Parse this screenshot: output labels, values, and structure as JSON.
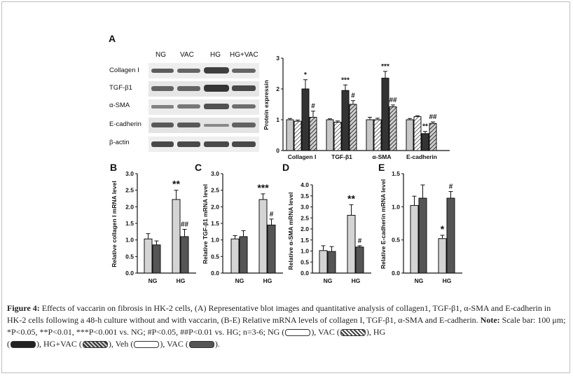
{
  "panel_letters": [
    "A",
    "B",
    "C",
    "D",
    "E"
  ],
  "blot": {
    "groups": [
      "NG",
      "VAC",
      "HG",
      "HG+VAC"
    ],
    "rows": [
      "Collagen I",
      "TGF-β1",
      "α-SMA",
      "E-cadherin",
      "β-actin"
    ]
  },
  "caption": {
    "label": "Figure 4:",
    "text": " Effects of vaccarin on fibrosis in HK-2 cells, (A) Representative blot images and quantitative analysis of collagen1, TGF-β1, α-SMA and E-cadherin in HK-2 cells following a 48-h culture without and with vaccarin, (B-E) Relative mRNA levels of collagen I, TGF-β1, α-SMA and E-cadherin. ",
    "note_label": "Note:",
    "note_text": " Scale bar: 100 μm; *P<0.05, **P<0.01, ***P<0.001 vs. NG; #P<0.05, ##P<0.01 vs. HG; n=3-6; NG (",
    "leg1": "), VAC (",
    "leg2": "), HG",
    "leg3": "(",
    "leg4": "), HG+VAC (",
    "leg5": "), Veh (",
    "leg6": "), VAC (",
    "leg7": ")."
  },
  "colors": {
    "ng": "#c8c8c8",
    "vac": "#c8c8c8",
    "hg": "#333333",
    "hgvac": "#8a8a8a",
    "light": "#d4d4d4",
    "dark": "#555555"
  },
  "chart_data": [
    {
      "type": "bar",
      "panel": "A",
      "ylabel": "Protein expressin",
      "ylim": [
        0,
        3
      ],
      "yticks": [
        0,
        1,
        2,
        3
      ],
      "categories": [
        "Collagen I",
        "TGF-β1",
        "α-SMA",
        "E-cadherin"
      ],
      "series": [
        {
          "values": [
            1.0,
            1.0,
            1.0,
            1.0
          ],
          "errors": [
            0.04,
            0.03,
            0.08,
            0.04
          ],
          "fill": "plain",
          "color": "#c8c8c8"
        },
        {
          "values": [
            0.95,
            0.92,
            1.0,
            1.1
          ],
          "errors": [
            0.04,
            0.04,
            0.05,
            0.03
          ],
          "fill": "hatch",
          "color": "#c8c8c8"
        },
        {
          "values": [
            2.0,
            1.95,
            2.35,
            0.55
          ],
          "errors": [
            0.3,
            0.18,
            0.22,
            0.07
          ],
          "fill": "plain",
          "color": "#333333"
        },
        {
          "values": [
            1.08,
            1.5,
            1.42,
            0.88
          ],
          "errors": [
            0.2,
            0.12,
            0.06,
            0.05
          ],
          "fill": "hatch",
          "color": "#8a8a8a"
        }
      ],
      "annotations": [
        {
          "cat": 0,
          "series": 2,
          "text": "*"
        },
        {
          "cat": 0,
          "series": 3,
          "text": "#"
        },
        {
          "cat": 1,
          "series": 2,
          "text": "***"
        },
        {
          "cat": 1,
          "series": 3,
          "text": "#"
        },
        {
          "cat": 2,
          "series": 2,
          "text": "***"
        },
        {
          "cat": 2,
          "series": 3,
          "text": "##"
        },
        {
          "cat": 3,
          "series": 2,
          "text": "**"
        },
        {
          "cat": 3,
          "series": 3,
          "text": "##"
        }
      ]
    },
    {
      "type": "bar",
      "panel": "B",
      "ylabel": "Relative collagen I mRNA level",
      "ylim": [
        0,
        3
      ],
      "yticks": [
        "0.0",
        "0.5",
        "1.0",
        "1.5",
        "2.0",
        "2.5",
        "3.0"
      ],
      "categories": [
        "NG",
        "HG"
      ],
      "series": [
        {
          "values": [
            1.03,
            2.22
          ],
          "errors": [
            0.16,
            0.28
          ],
          "color": "#d4d4d4"
        },
        {
          "values": [
            0.85,
            1.1
          ],
          "errors": [
            0.12,
            0.22
          ],
          "color": "#555555"
        }
      ],
      "annotations": [
        {
          "cat": 1,
          "series": 0,
          "text": "**"
        },
        {
          "cat": 1,
          "series": 1,
          "text": "##"
        }
      ]
    },
    {
      "type": "bar",
      "panel": "C",
      "ylabel": "Relative TGF-β1 mRNA level",
      "ylim": [
        0,
        3
      ],
      "yticks": [
        "0.0",
        "0.5",
        "1.0",
        "1.5",
        "2.0",
        "2.5",
        "3.0"
      ],
      "categories": [
        "NG",
        "HG"
      ],
      "series": [
        {
          "values": [
            1.03,
            2.22
          ],
          "errors": [
            0.1,
            0.17
          ],
          "color": "#d4d4d4"
        },
        {
          "values": [
            1.1,
            1.45
          ],
          "errors": [
            0.18,
            0.18
          ],
          "color": "#555555"
        }
      ],
      "annotations": [
        {
          "cat": 1,
          "series": 0,
          "text": "***"
        },
        {
          "cat": 1,
          "series": 1,
          "text": "#"
        }
      ]
    },
    {
      "type": "bar",
      "panel": "D",
      "ylabel": "Relative α-SMA mRNA level",
      "ylim": [
        0,
        4
      ],
      "yticks": [
        "0.0",
        "0.5",
        "1.0",
        "1.5",
        "2.0",
        "2.5",
        "3.0",
        "3.5",
        "4.0"
      ],
      "categories": [
        "NG",
        "HG"
      ],
      "series": [
        {
          "values": [
            1.02,
            2.62
          ],
          "errors": [
            0.22,
            0.48
          ],
          "color": "#d4d4d4"
        },
        {
          "values": [
            0.98,
            1.18
          ],
          "errors": [
            0.22,
            0.06
          ],
          "color": "#555555"
        }
      ],
      "annotations": [
        {
          "cat": 1,
          "series": 0,
          "text": "**"
        },
        {
          "cat": 1,
          "series": 1,
          "text": "#"
        }
      ]
    },
    {
      "type": "bar",
      "panel": "E",
      "ylabel": "Relative E-cadherin mRNA level",
      "ylim": [
        0,
        1.5
      ],
      "yticks": [
        "0.0",
        "0.5",
        "1.0",
        "1.5"
      ],
      "categories": [
        "NG",
        "HG"
      ],
      "series": [
        {
          "values": [
            1.02,
            0.52
          ],
          "errors": [
            0.14,
            0.05
          ],
          "color": "#d4d4d4"
        },
        {
          "values": [
            1.13,
            1.13
          ],
          "errors": [
            0.2,
            0.1
          ],
          "color": "#555555"
        }
      ],
      "annotations": [
        {
          "cat": 1,
          "series": 0,
          "text": "*"
        },
        {
          "cat": 1,
          "series": 1,
          "text": "#"
        }
      ]
    }
  ]
}
